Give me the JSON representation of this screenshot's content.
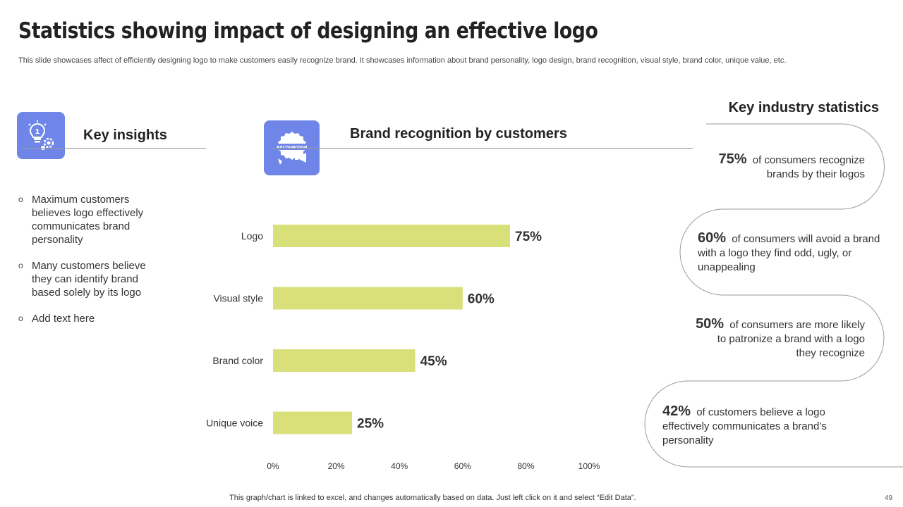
{
  "header": {
    "title": "Statistics showing impact of designing an effective logo",
    "subtitle": "This slide showcases affect of efficiently designing logo to make customers easily recognize brand. It showcases information about brand personality, logo design, brand recognition, visual style, brand color, unique value, etc."
  },
  "insights": {
    "heading": "Key insights",
    "icon": "lightbulb-gear-icon",
    "items": [
      "Maximum customers believes logo effectively communicates brand personality",
      "Many customers believe they can identify brand based solely by its logo",
      "Add text here"
    ],
    "bullet": "o"
  },
  "chart_section": {
    "heading": "Brand recognition  by customers",
    "icon": "recognition-badge-megaphone-icon",
    "icon_text": "RECOGNITION"
  },
  "chart_data": {
    "type": "bar",
    "orientation": "horizontal",
    "title": "Brand recognition  by customers",
    "categories": [
      "Logo",
      "Visual style",
      "Brand color",
      "Unique voice"
    ],
    "values": [
      75,
      60,
      45,
      25
    ],
    "value_labels": [
      "75%",
      "60%",
      "45%",
      "25%"
    ],
    "xlim": [
      0,
      100
    ],
    "xticks": [
      "0%",
      "20%",
      "40%",
      "60%",
      "80%",
      "100%"
    ],
    "xlabel": "",
    "ylabel": "",
    "bar_color": "#d9e07a",
    "grid": false
  },
  "stats": {
    "heading": "Key industry statistics",
    "items": [
      {
        "pct": "75%",
        "text": "of consumers recognize brands by their logos"
      },
      {
        "pct": "60%",
        "text": "of consumers will avoid a brand with a logo they find odd, ugly, or unappealing"
      },
      {
        "pct": "50%",
        "text": "of consumers are more likely to patronize a brand with a logo they recognize"
      },
      {
        "pct": "42%",
        "text": "of customers believe a logo effectively communicates a brand’s personality"
      }
    ]
  },
  "footer": {
    "note": "This graph/chart is linked to excel,  and changes automatically based on data. Just left click on it and select “Edit Data”.",
    "page_number": "49"
  },
  "colors": {
    "accent": "#6f86e8",
    "bar": "#d9e07a",
    "line": "#9a9a9a"
  }
}
